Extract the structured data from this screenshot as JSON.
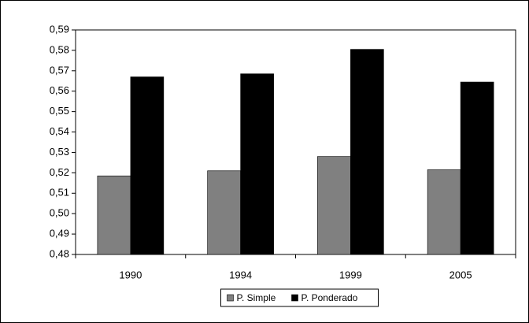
{
  "chart_data": {
    "type": "bar",
    "categories": [
      "1990",
      "1994",
      "1999",
      "2005"
    ],
    "series": [
      {
        "name": "P. Simple",
        "color": "#808080",
        "values": [
          0.5185,
          0.521,
          0.528,
          0.5215
        ]
      },
      {
        "name": "P. Ponderado",
        "color": "#000000",
        "values": [
          0.567,
          0.5685,
          0.5805,
          0.5645
        ]
      }
    ],
    "ylim": [
      0.48,
      0.59
    ],
    "yticks": [
      {
        "value": 0.48,
        "label": "0,48"
      },
      {
        "value": 0.49,
        "label": "0,49"
      },
      {
        "value": 0.5,
        "label": "0,50"
      },
      {
        "value": 0.51,
        "label": "0,51"
      },
      {
        "value": 0.52,
        "label": "0,52"
      },
      {
        "value": 0.53,
        "label": "0,53"
      },
      {
        "value": 0.54,
        "label": "0,54"
      },
      {
        "value": 0.55,
        "label": "0,55"
      },
      {
        "value": 0.56,
        "label": "0,56"
      },
      {
        "value": 0.57,
        "label": "0,57"
      },
      {
        "value": 0.58,
        "label": "0,58"
      },
      {
        "value": 0.59,
        "label": "0,59"
      }
    ],
    "grid": false,
    "legend": "bottom"
  }
}
